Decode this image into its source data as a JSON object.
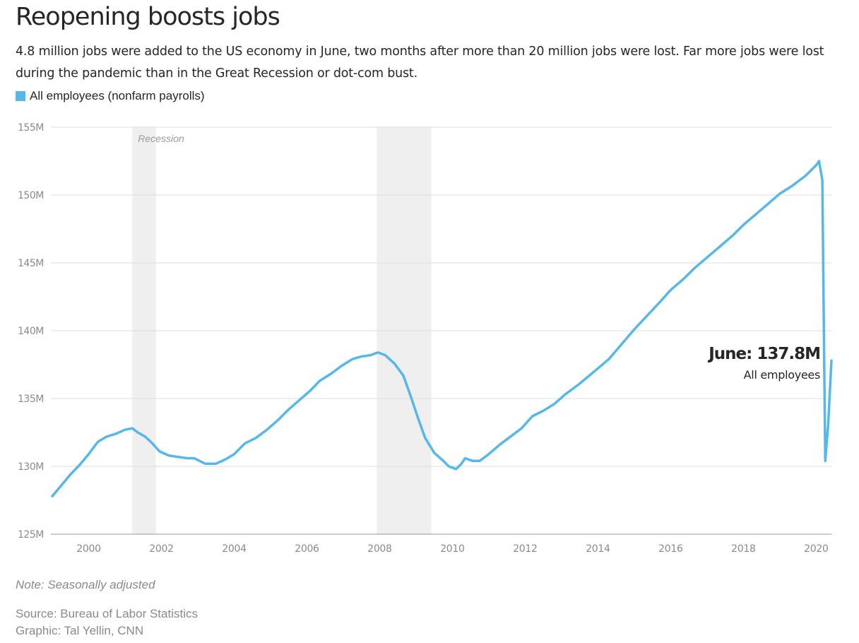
{
  "title": "Reopening boosts jobs",
  "subtitle": "4.8 million jobs were added to the US economy in June, two months after more than 20 million jobs were lost. Far more jobs were lost during the pandemic than in the Great Recession or dot-com bust.",
  "footer": {
    "note": "Note: Seasonally adjusted",
    "source": "Source: Bureau of Labor Statistics",
    "credit": "Graphic: Tal Yellin, CNN"
  },
  "chart_data": {
    "type": "line",
    "series": [
      {
        "name": "All employees (nonfarm payrolls)",
        "color": "#56b8e9",
        "points": [
          [
            1999.0,
            127.8
          ],
          [
            1999.25,
            128.6
          ],
          [
            1999.5,
            129.4
          ],
          [
            1999.75,
            130.1
          ],
          [
            2000.0,
            130.9
          ],
          [
            2000.25,
            131.8
          ],
          [
            2000.5,
            132.2
          ],
          [
            2000.75,
            132.4
          ],
          [
            2001.0,
            132.7
          ],
          [
            2001.2,
            132.8
          ],
          [
            2001.35,
            132.5
          ],
          [
            2001.55,
            132.2
          ],
          [
            2001.75,
            131.7
          ],
          [
            2001.95,
            131.1
          ],
          [
            2002.2,
            130.8
          ],
          [
            2002.45,
            130.7
          ],
          [
            2002.7,
            130.6
          ],
          [
            2002.9,
            130.6
          ],
          [
            2003.2,
            130.2
          ],
          [
            2003.5,
            130.2
          ],
          [
            2003.75,
            130.5
          ],
          [
            2004.0,
            130.9
          ],
          [
            2004.3,
            131.7
          ],
          [
            2004.6,
            132.1
          ],
          [
            2004.9,
            132.7
          ],
          [
            2005.2,
            133.4
          ],
          [
            2005.5,
            134.2
          ],
          [
            2005.8,
            134.9
          ],
          [
            2006.1,
            135.6
          ],
          [
            2006.35,
            136.3
          ],
          [
            2006.65,
            136.8
          ],
          [
            2006.95,
            137.4
          ],
          [
            2007.25,
            137.9
          ],
          [
            2007.5,
            138.1
          ],
          [
            2007.75,
            138.2
          ],
          [
            2007.95,
            138.4
          ],
          [
            2008.15,
            138.2
          ],
          [
            2008.4,
            137.6
          ],
          [
            2008.65,
            136.7
          ],
          [
            2008.85,
            135.2
          ],
          [
            2009.05,
            133.6
          ],
          [
            2009.25,
            132.1
          ],
          [
            2009.5,
            131.0
          ],
          [
            2009.75,
            130.4
          ],
          [
            2009.9,
            130.0
          ],
          [
            2010.1,
            129.8
          ],
          [
            2010.25,
            130.2
          ],
          [
            2010.35,
            130.6
          ],
          [
            2010.55,
            130.4
          ],
          [
            2010.75,
            130.4
          ],
          [
            2011.0,
            130.9
          ],
          [
            2011.3,
            131.6
          ],
          [
            2011.6,
            132.2
          ],
          [
            2011.9,
            132.8
          ],
          [
            2012.2,
            133.7
          ],
          [
            2012.5,
            134.1
          ],
          [
            2012.8,
            134.6
          ],
          [
            2013.1,
            135.3
          ],
          [
            2013.5,
            136.1
          ],
          [
            2013.9,
            137.0
          ],
          [
            2014.3,
            137.9
          ],
          [
            2014.65,
            139.0
          ],
          [
            2015.0,
            140.1
          ],
          [
            2015.35,
            141.1
          ],
          [
            2015.7,
            142.1
          ],
          [
            2016.0,
            143.0
          ],
          [
            2016.35,
            143.8
          ],
          [
            2016.65,
            144.6
          ],
          [
            2017.0,
            145.4
          ],
          [
            2017.35,
            146.2
          ],
          [
            2017.7,
            147.0
          ],
          [
            2018.0,
            147.8
          ],
          [
            2018.35,
            148.6
          ],
          [
            2018.7,
            149.4
          ],
          [
            2019.0,
            150.1
          ],
          [
            2019.35,
            150.7
          ],
          [
            2019.7,
            151.4
          ],
          [
            2020.0,
            152.2
          ],
          [
            2020.08,
            152.5
          ],
          [
            2020.17,
            151.1
          ],
          [
            2020.25,
            130.4
          ],
          [
            2020.33,
            133.1
          ],
          [
            2020.42,
            137.8
          ]
        ]
      }
    ],
    "recessions": [
      [
        2001.2,
        2001.85
      ],
      [
        2007.92,
        2009.42
      ]
    ],
    "recession_label": "Recession",
    "xlim": [
      1999.0,
      2020.42
    ],
    "ylim": [
      125,
      155
    ],
    "yticks": [
      125,
      130,
      135,
      140,
      145,
      150,
      155
    ],
    "ytick_labels": [
      "125M",
      "130M",
      "135M",
      "140M",
      "145M",
      "150M",
      "155M"
    ],
    "xticks": [
      2000,
      2002,
      2004,
      2006,
      2008,
      2010,
      2012,
      2014,
      2016,
      2018,
      2020
    ],
    "xtick_labels": [
      "2000",
      "2002",
      "2004",
      "2006",
      "2008",
      "2010",
      "2012",
      "2014",
      "2016",
      "2018",
      "2020"
    ],
    "annotation": {
      "title": "June: 137.8M",
      "subtitle": "All employees"
    },
    "grid": true
  }
}
